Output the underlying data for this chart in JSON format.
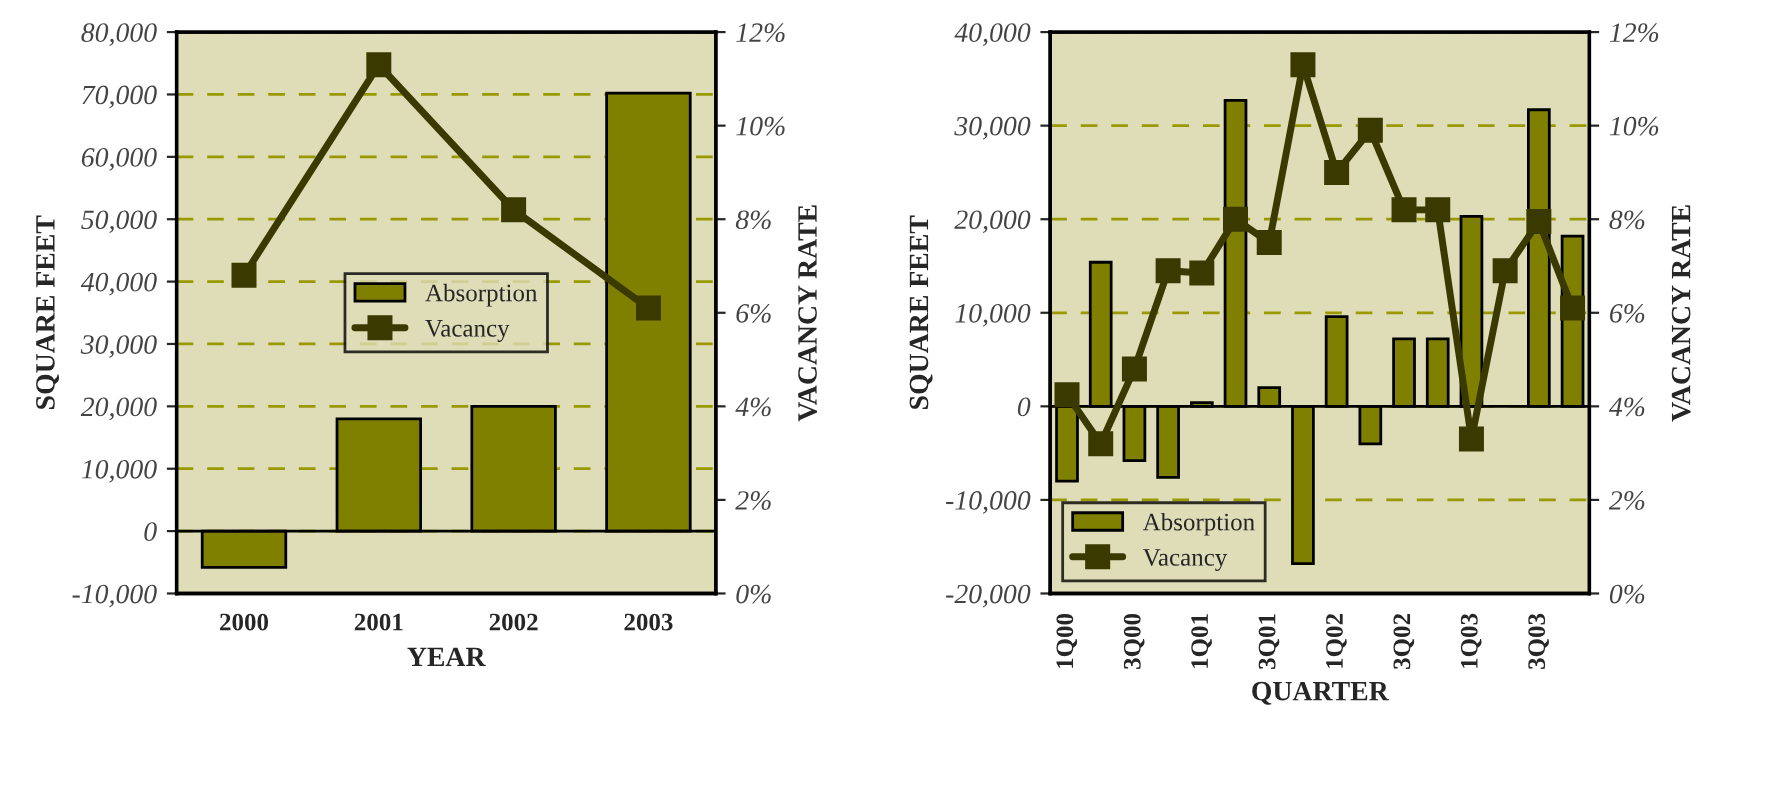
{
  "chart_data": [
    {
      "type": "bar",
      "xlabel": "YEAR",
      "ylabel": "SQUARE FEET",
      "y2label": "VACANCY RATE",
      "categories": [
        "2000",
        "2001",
        "2002",
        "2003"
      ],
      "series": [
        {
          "name": "Absorption",
          "color": "#808000",
          "values": [
            -5800,
            18000,
            20000,
            70200
          ]
        },
        {
          "name": "Vacancy",
          "type": "line",
          "axis": "y2",
          "color": "#3a3a00",
          "marker": "square",
          "values": [
            6.8,
            11.3,
            8.2,
            6.1
          ]
        }
      ],
      "ylim": [
        -10000,
        80000
      ],
      "yticks": [
        {
          "value": -10000,
          "label": "-10,000"
        },
        {
          "value": 0,
          "label": "0"
        },
        {
          "value": 10000,
          "label": "10,000"
        },
        {
          "value": 20000,
          "label": "20,000"
        },
        {
          "value": 30000,
          "label": "30,000"
        },
        {
          "value": 40000,
          "label": "40,000"
        },
        {
          "value": 50000,
          "label": "50,000"
        },
        {
          "value": 60000,
          "label": "60,000"
        },
        {
          "value": 70000,
          "label": "70,000"
        },
        {
          "value": 80000,
          "label": "80,000"
        }
      ],
      "y2lim": [
        0,
        12
      ],
      "y2ticks": [
        {
          "value": 0,
          "label": "0%"
        },
        {
          "value": 2,
          "label": "2%"
        },
        {
          "value": 4,
          "label": "4%"
        },
        {
          "value": 6,
          "label": "6%"
        },
        {
          "value": 8,
          "label": "8%"
        },
        {
          "value": 10,
          "label": "10%"
        },
        {
          "value": 12,
          "label": "12%"
        }
      ],
      "grid": "y",
      "legend": "center"
    },
    {
      "type": "bar",
      "xlabel": "QUARTER",
      "ylabel": "SQUARE FEET",
      "y2label": "VACANCY RATE",
      "categories": [
        "1Q00",
        null,
        "3Q00",
        null,
        "1Q01",
        null,
        "3Q01",
        null,
        "1Q02",
        null,
        "3Q02",
        null,
        "1Q03",
        null,
        "3Q03",
        null
      ],
      "series": [
        {
          "name": "Absorption",
          "color": "#808000",
          "values": [
            -8000,
            15400,
            -5800,
            -7600,
            400,
            32700,
            2000,
            -16800,
            9600,
            -4000,
            7200,
            7200,
            20300,
            null,
            31700,
            18200
          ]
        },
        {
          "name": "Vacancy",
          "type": "line",
          "axis": "y2",
          "color": "#3a3a00",
          "marker": "square",
          "values": [
            4.25,
            3.2,
            4.8,
            6.9,
            6.85,
            8.0,
            7.5,
            11.3,
            9.0,
            9.9,
            8.2,
            8.2,
            3.3,
            6.9,
            7.95,
            6.1
          ]
        }
      ],
      "ylim": [
        -20000,
        40000
      ],
      "yticks": [
        {
          "value": -20000,
          "label": "-20,000"
        },
        {
          "value": -10000,
          "label": "-10,000"
        },
        {
          "value": 0,
          "label": "0"
        },
        {
          "value": 10000,
          "label": "10,000"
        },
        {
          "value": 20000,
          "label": "20,000"
        },
        {
          "value": 30000,
          "label": "30,000"
        },
        {
          "value": 40000,
          "label": "40,000"
        }
      ],
      "y2lim": [
        0,
        12
      ],
      "y2ticks": [
        {
          "value": 0,
          "label": "0%"
        },
        {
          "value": 2,
          "label": "2%"
        },
        {
          "value": 4,
          "label": "4%"
        },
        {
          "value": 6,
          "label": "6%"
        },
        {
          "value": 8,
          "label": "8%"
        },
        {
          "value": 10,
          "label": "10%"
        },
        {
          "value": 12,
          "label": "12%"
        }
      ],
      "grid": "y",
      "legend": "lower left"
    }
  ]
}
